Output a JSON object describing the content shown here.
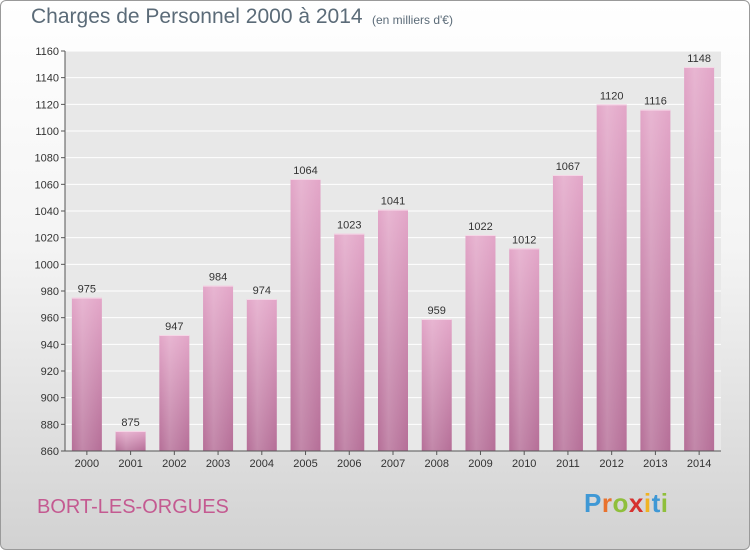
{
  "title": "Charges de Personnel 2000 à 2014",
  "subtitle": "(en milliers d'€)",
  "place": "BORT-LES-ORGUES",
  "logo": {
    "letters": [
      "P",
      "r",
      "o",
      "x",
      "i",
      "t",
      "i"
    ],
    "colors": [
      "#3f98d5",
      "#e9722d",
      "#8fbf3b",
      "#d6312f",
      "#f0b323",
      "#3f98d5",
      "#8fbf3b"
    ]
  },
  "chart_data": {
    "type": "bar",
    "title": "Charges de Personnel 2000 à 2014",
    "subtitle": "(en milliers d'€)",
    "categories": [
      "2000",
      "2001",
      "2002",
      "2003",
      "2004",
      "2005",
      "2006",
      "2007",
      "2008",
      "2009",
      "2010",
      "2011",
      "2012",
      "2013",
      "2014"
    ],
    "values": [
      975,
      875,
      947,
      984,
      974,
      1064,
      1023,
      1041,
      959,
      1022,
      1012,
      1067,
      1120,
      1116,
      1148
    ],
    "ylim": [
      860,
      1160
    ],
    "yticks": [
      860,
      880,
      900,
      920,
      940,
      960,
      980,
      1000,
      1020,
      1040,
      1060,
      1080,
      1100,
      1120,
      1140,
      1160
    ],
    "grid": true,
    "bar_color": "#c97aa6"
  }
}
